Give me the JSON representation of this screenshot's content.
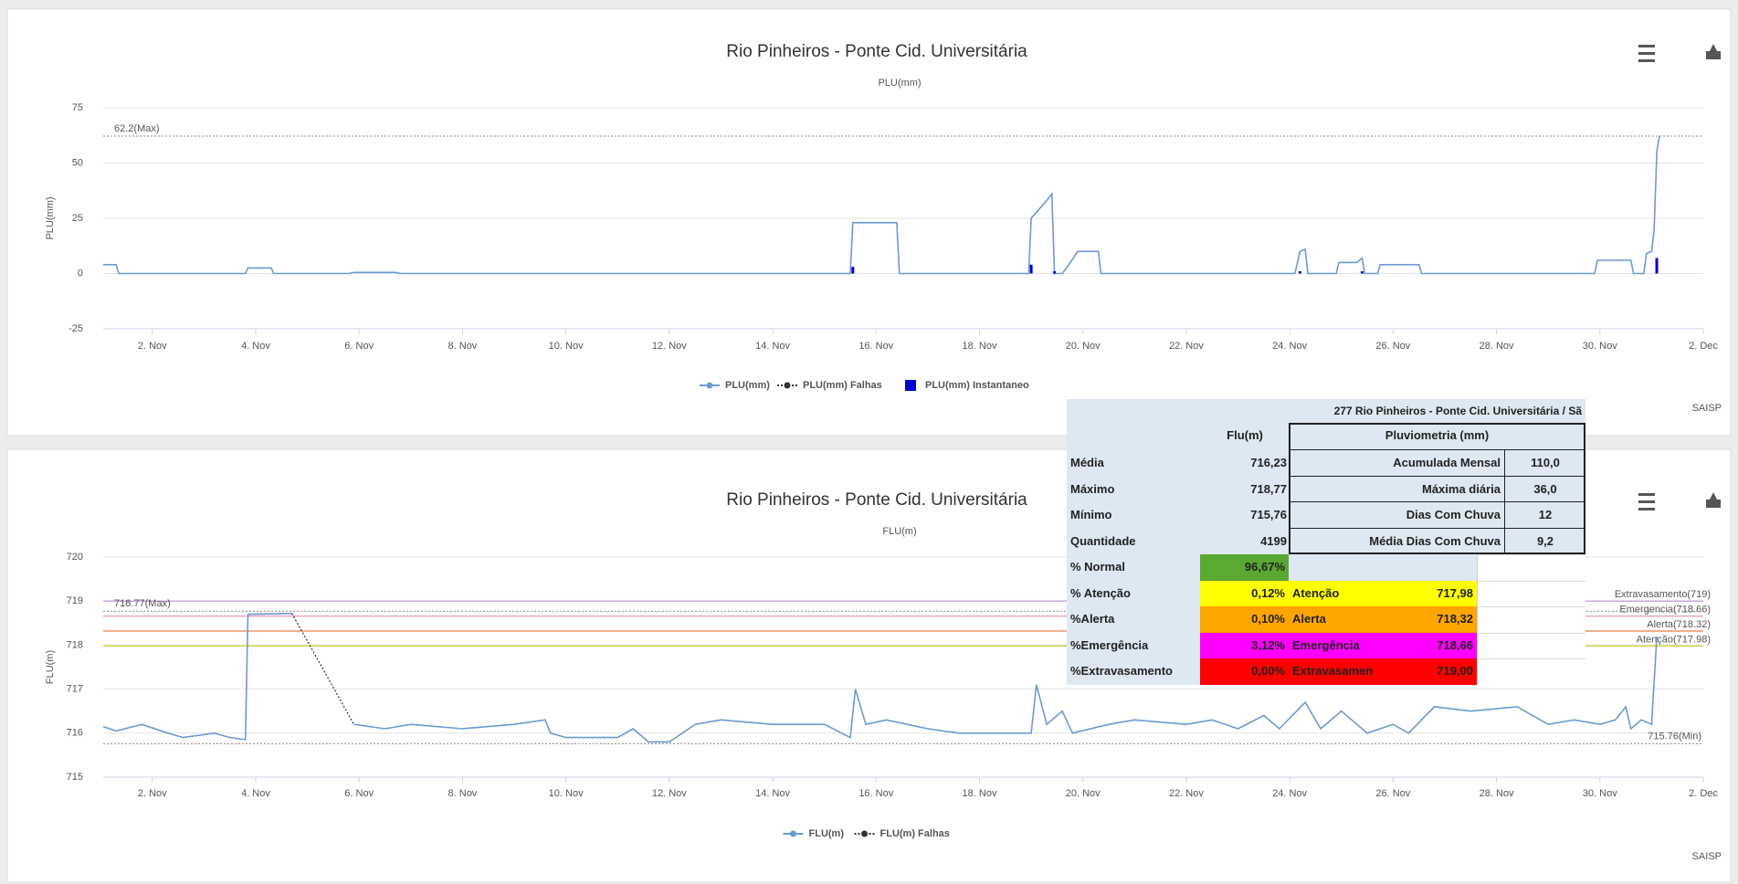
{
  "chart_data": [
    {
      "type": "line",
      "title": "Rio Pinheiros - Ponte Cid. Universitária",
      "subtitle": "PLU(mm)",
      "y_label": "PLU(mm)",
      "credits": "SAISP",
      "xlim": [
        1.05,
        32
      ],
      "xticks": [
        {
          "value": 2,
          "label": "2. Nov"
        },
        {
          "value": 4,
          "label": "4. Nov"
        },
        {
          "value": 6,
          "label": "6. Nov"
        },
        {
          "value": 8,
          "label": "8. Nov"
        },
        {
          "value": 10,
          "label": "10. Nov"
        },
        {
          "value": 12,
          "label": "12. Nov"
        },
        {
          "value": 14,
          "label": "14. Nov"
        },
        {
          "value": 16,
          "label": "16. Nov"
        },
        {
          "value": 18,
          "label": "18. Nov"
        },
        {
          "value": 20,
          "label": "20. Nov"
        },
        {
          "value": 22,
          "label": "22. Nov"
        },
        {
          "value": 24,
          "label": "24. Nov"
        },
        {
          "value": 26,
          "label": "26. Nov"
        },
        {
          "value": 28,
          "label": "28. Nov"
        },
        {
          "value": 30,
          "label": "30. Nov"
        },
        {
          "value": 32,
          "label": "2. Dec"
        }
      ],
      "ylim": [
        -25,
        75
      ],
      "yticks": [
        -25,
        0,
        25,
        50,
        75
      ],
      "grid": true,
      "annotations": [
        {
          "value": 62.2,
          "label": "62.2(Max)",
          "position": "left"
        }
      ],
      "series": [
        {
          "name": "PLU(mm)",
          "type": "line",
          "color": "#6b9bd1",
          "x": [
            1.05,
            1.3,
            1.35,
            3.8,
            3.85,
            4.3,
            4.35,
            5.8,
            5.9,
            6.7,
            6.8,
            15.5,
            15.55,
            16.4,
            16.45,
            18.95,
            19.0,
            19.3,
            19.4,
            19.45,
            19.6,
            19.7,
            19.9,
            20.3,
            20.35,
            24.1,
            24.2,
            24.3,
            24.35,
            24.9,
            24.95,
            25.3,
            25.4,
            25.45,
            25.7,
            25.75,
            26.5,
            26.55,
            29.9,
            29.95,
            30.6,
            30.65,
            30.85,
            30.9,
            31.0,
            31.05,
            31.1,
            31.15
          ],
          "values": [
            4,
            4,
            0,
            0,
            2.5,
            2.5,
            0,
            0,
            0.5,
            0.5,
            0,
            0,
            23,
            23,
            0,
            0,
            25,
            33,
            36,
            0,
            0,
            3,
            10,
            10,
            0,
            0,
            10,
            11,
            0,
            0,
            5,
            5,
            7,
            0,
            0,
            4,
            4,
            0,
            0,
            6,
            6,
            0,
            0,
            9,
            10,
            20,
            55,
            62.2
          ]
        },
        {
          "name": "PLU(mm) Falhas",
          "type": "dashed",
          "color": "#333333",
          "x": [],
          "values": []
        },
        {
          "name": "PLU(mm) Instantaneo",
          "type": "column",
          "color": "#0000cc",
          "x": [
            15.55,
            19.0,
            19.45,
            24.2,
            25.4,
            31.1
          ],
          "values": [
            3,
            4,
            1,
            1,
            1,
            7
          ]
        }
      ]
    },
    {
      "type": "line",
      "title": "Rio Pinheiros - Ponte Cid. Universitária",
      "subtitle": "FLU(m)",
      "y_label": "FLU(m)",
      "credits": "SAISP",
      "xlim": [
        1.05,
        32
      ],
      "xticks": [
        {
          "value": 2,
          "label": "2. Nov"
        },
        {
          "value": 4,
          "label": "4. Nov"
        },
        {
          "value": 6,
          "label": "6. Nov"
        },
        {
          "value": 8,
          "label": "8. Nov"
        },
        {
          "value": 10,
          "label": "10. Nov"
        },
        {
          "value": 12,
          "label": "12. Nov"
        },
        {
          "value": 14,
          "label": "14. Nov"
        },
        {
          "value": 16,
          "label": "16. Nov"
        },
        {
          "value": 18,
          "label": "18. Nov"
        },
        {
          "value": 20,
          "label": "20. Nov"
        },
        {
          "value": 22,
          "label": "22. Nov"
        },
        {
          "value": 24,
          "label": "24. Nov"
        },
        {
          "value": 26,
          "label": "26. Nov"
        },
        {
          "value": 28,
          "label": "28. Nov"
        },
        {
          "value": 30,
          "label": "30. Nov"
        },
        {
          "value": 32,
          "label": "2. Dec"
        }
      ],
      "ylim": [
        715,
        720
      ],
      "yticks": [
        715,
        716,
        717,
        718,
        719,
        720
      ],
      "grid": true,
      "plot_lines": [
        {
          "value": 719,
          "label": "Extravasamento(719)",
          "color": "#c9a6de"
        },
        {
          "value": 718.66,
          "label": "Emergencia(718.66)",
          "color": "#e9a3c9"
        },
        {
          "value": 718.32,
          "label": "Alerta(718.32)",
          "color": "#e8956a"
        },
        {
          "value": 717.98,
          "label": "Atenção(717.98)",
          "color": "#d8d34a"
        }
      ],
      "annotations": [
        {
          "value": 718.77,
          "label": "718.77(Max)",
          "position": "left"
        },
        {
          "value": 715.76,
          "label": "715.76(Min)",
          "position": "right"
        }
      ],
      "series": [
        {
          "name": "FLU(m)",
          "type": "line",
          "color": "#6b9bd1",
          "x": [
            1.05,
            1.3,
            1.8,
            2.3,
            2.6,
            3.2,
            3.5,
            3.8,
            3.85,
            4.7,
            5.3,
            5.9,
            6.5,
            7,
            8,
            9,
            9.6,
            9.7,
            10,
            11,
            11.3,
            11.6,
            12,
            12.5,
            13,
            14,
            15,
            15.5,
            15.6,
            15.8,
            16.2,
            17,
            17.6,
            18.5,
            19.0,
            19.1,
            19.3,
            19.6,
            19.8,
            20.5,
            21,
            22,
            22.5,
            23,
            23.5,
            23.8,
            24.3,
            24.6,
            25,
            25.5,
            26,
            26.3,
            26.8,
            27.5,
            28.4,
            29,
            29.5,
            30,
            30.3,
            30.5,
            30.6,
            30.8,
            31,
            31.1
          ],
          "values": [
            716.15,
            716.05,
            716.2,
            716.0,
            715.9,
            716.0,
            715.9,
            715.85,
            718.7,
            718.72,
            null,
            716.2,
            716.1,
            716.2,
            716.1,
            716.2,
            716.3,
            716.0,
            715.9,
            715.9,
            716.1,
            715.8,
            715.8,
            716.2,
            716.3,
            716.2,
            716.2,
            715.9,
            717.0,
            716.2,
            716.3,
            716.1,
            716.0,
            716.0,
            716.0,
            717.1,
            716.2,
            716.5,
            716.0,
            716.2,
            716.3,
            716.2,
            716.3,
            716.1,
            716.4,
            716.1,
            716.7,
            716.1,
            716.5,
            716.0,
            716.2,
            716.0,
            716.6,
            716.5,
            716.6,
            716.2,
            716.3,
            716.2,
            716.3,
            716.6,
            716.1,
            716.3,
            716.2,
            718.2
          ]
        },
        {
          "name": "FLU(m) Falhas",
          "type": "dashed",
          "color": "#333333",
          "x": [
            4.7,
            5.9
          ],
          "values": [
            718.72,
            716.2
          ]
        }
      ]
    }
  ],
  "table": {
    "title": "277 Rio Pinheiros - Ponte Cid. Universitária / Sã",
    "flu_header": "Flu(m)",
    "pluv_header": "Pluviometria (mm)",
    "flu_rows": [
      {
        "label": "Média",
        "value": "716,23"
      },
      {
        "label": "Máximo",
        "value": "718,77"
      },
      {
        "label": "Mínimo",
        "value": "715,76"
      },
      {
        "label": "Quantidade",
        "value": "4199"
      }
    ],
    "pluv_rows": [
      {
        "label": "Acumulada Mensal",
        "value": "110,0"
      },
      {
        "label": "Máxima diária",
        "value": "36,0"
      },
      {
        "label": "Dias Com Chuva",
        "value": "12"
      },
      {
        "label": "Média Dias Com Chuva",
        "value": "9,2"
      }
    ],
    "level_rows": [
      {
        "label": "% Normal",
        "value": "96,67%",
        "color": "#5aa832"
      },
      {
        "label": "% Atenção",
        "value": "0,12%",
        "level": "Atenção",
        "limit": "717,98",
        "color": "#ffff00"
      },
      {
        "label": "%Alerta",
        "value": "0,10%",
        "level": "Alerta",
        "limit": "718,32",
        "color": "#ffa500"
      },
      {
        "label": "%Emergência",
        "value": "3,12%",
        "level": "Emergência",
        "limit": "718,66",
        "color": "#ff00ff"
      },
      {
        "label": "%Extravasamento",
        "value": "0,00%",
        "level": "Extravasamen",
        "limit": "719,00",
        "color": "#ff0000"
      }
    ]
  }
}
